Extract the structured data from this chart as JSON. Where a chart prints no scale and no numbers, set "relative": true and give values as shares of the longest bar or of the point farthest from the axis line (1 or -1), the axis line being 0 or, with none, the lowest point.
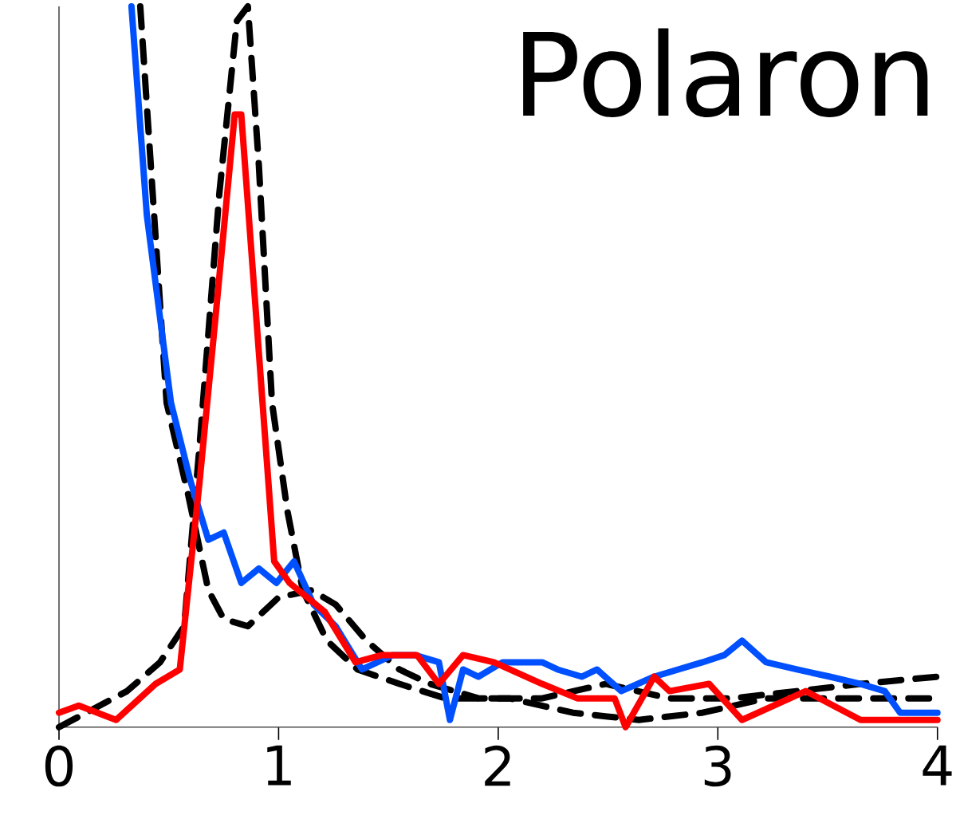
{
  "chart_data": {
    "type": "line",
    "relative": true,
    "xlim": [
      0,
      4
    ],
    "xticks": [
      0,
      1,
      2,
      3,
      4
    ],
    "grid": false,
    "marker": "none",
    "annotations": [
      "Polaron"
    ],
    "series": [
      {
        "color": "#000000",
        "line_style": "dashed",
        "x": [
          0.37,
          0.49,
          0.59,
          0.68,
          0.75,
          0.86,
          1.0,
          1.15,
          1.26,
          1.4,
          1.55,
          1.69,
          1.91,
          2.2,
          2.49,
          2.78,
          3.07,
          3.36,
          3.65,
          4.0
        ],
        "values": [
          1.0,
          0.45,
          0.32,
          0.19,
          0.15,
          0.14,
          0.18,
          0.19,
          0.17,
          0.12,
          0.08,
          0.06,
          0.04,
          0.04,
          0.06,
          0.04,
          0.04,
          0.05,
          0.06,
          0.07
        ]
      },
      {
        "color": "#000000",
        "line_style": "dashed",
        "x": [
          0,
          0.31,
          0.46,
          0.57,
          0.64,
          0.73,
          0.81,
          0.86,
          0.91,
          0.97,
          1.04,
          1.11,
          1.22,
          1.36,
          1.55,
          1.76,
          2.05,
          2.34,
          2.64,
          2.93,
          3.22,
          3.51,
          3.8,
          4.0
        ],
        "values": [
          0,
          0.05,
          0.09,
          0.14,
          0.39,
          0.74,
          0.98,
          1.0,
          0.78,
          0.45,
          0.3,
          0.19,
          0.12,
          0.08,
          0.06,
          0.04,
          0.04,
          0.02,
          0.01,
          0.02,
          0.04,
          0.04,
          0.04,
          0.04
        ]
      },
      {
        "color": "#0050ff",
        "line_style": "solid",
        "x": [
          0.33,
          0.4,
          0.51,
          0.6,
          0.68,
          0.75,
          0.83,
          0.91,
          0.99,
          1.07,
          1.16,
          1.26,
          1.38,
          1.52,
          1.62,
          1.73,
          1.78,
          1.84,
          1.91,
          2.02,
          2.2,
          2.27,
          2.38,
          2.45,
          2.56,
          2.71,
          2.93,
          3.03,
          3.11,
          3.22,
          3.36,
          3.51,
          3.65,
          3.76,
          3.83,
          4.0
        ],
        "values": [
          1.0,
          0.71,
          0.45,
          0.34,
          0.26,
          0.27,
          0.2,
          0.22,
          0.2,
          0.23,
          0.17,
          0.14,
          0.08,
          0.1,
          0.1,
          0.09,
          0.01,
          0.08,
          0.07,
          0.09,
          0.09,
          0.08,
          0.07,
          0.08,
          0.05,
          0.07,
          0.09,
          0.1,
          0.12,
          0.09,
          0.08,
          0.07,
          0.06,
          0.05,
          0.02,
          0.02
        ]
      },
      {
        "color": "#ff0000",
        "line_style": "solid",
        "x": [
          0,
          0.09,
          0.26,
          0.44,
          0.55,
          0.64,
          0.71,
          0.8,
          0.83,
          0.91,
          0.98,
          1.05,
          1.21,
          1.35,
          1.47,
          1.63,
          1.73,
          1.84,
          1.98,
          2.2,
          2.36,
          2.53,
          2.58,
          2.71,
          2.78,
          2.96,
          3.11,
          3.4,
          3.65,
          4.0
        ],
        "values": [
          0.02,
          0.03,
          0.01,
          0.06,
          0.08,
          0.34,
          0.56,
          0.85,
          0.85,
          0.52,
          0.23,
          0.2,
          0.16,
          0.09,
          0.1,
          0.1,
          0.06,
          0.1,
          0.09,
          0.06,
          0.04,
          0.04,
          0.0,
          0.07,
          0.05,
          0.06,
          0.01,
          0.05,
          0.01,
          0.01
        ]
      }
    ]
  }
}
